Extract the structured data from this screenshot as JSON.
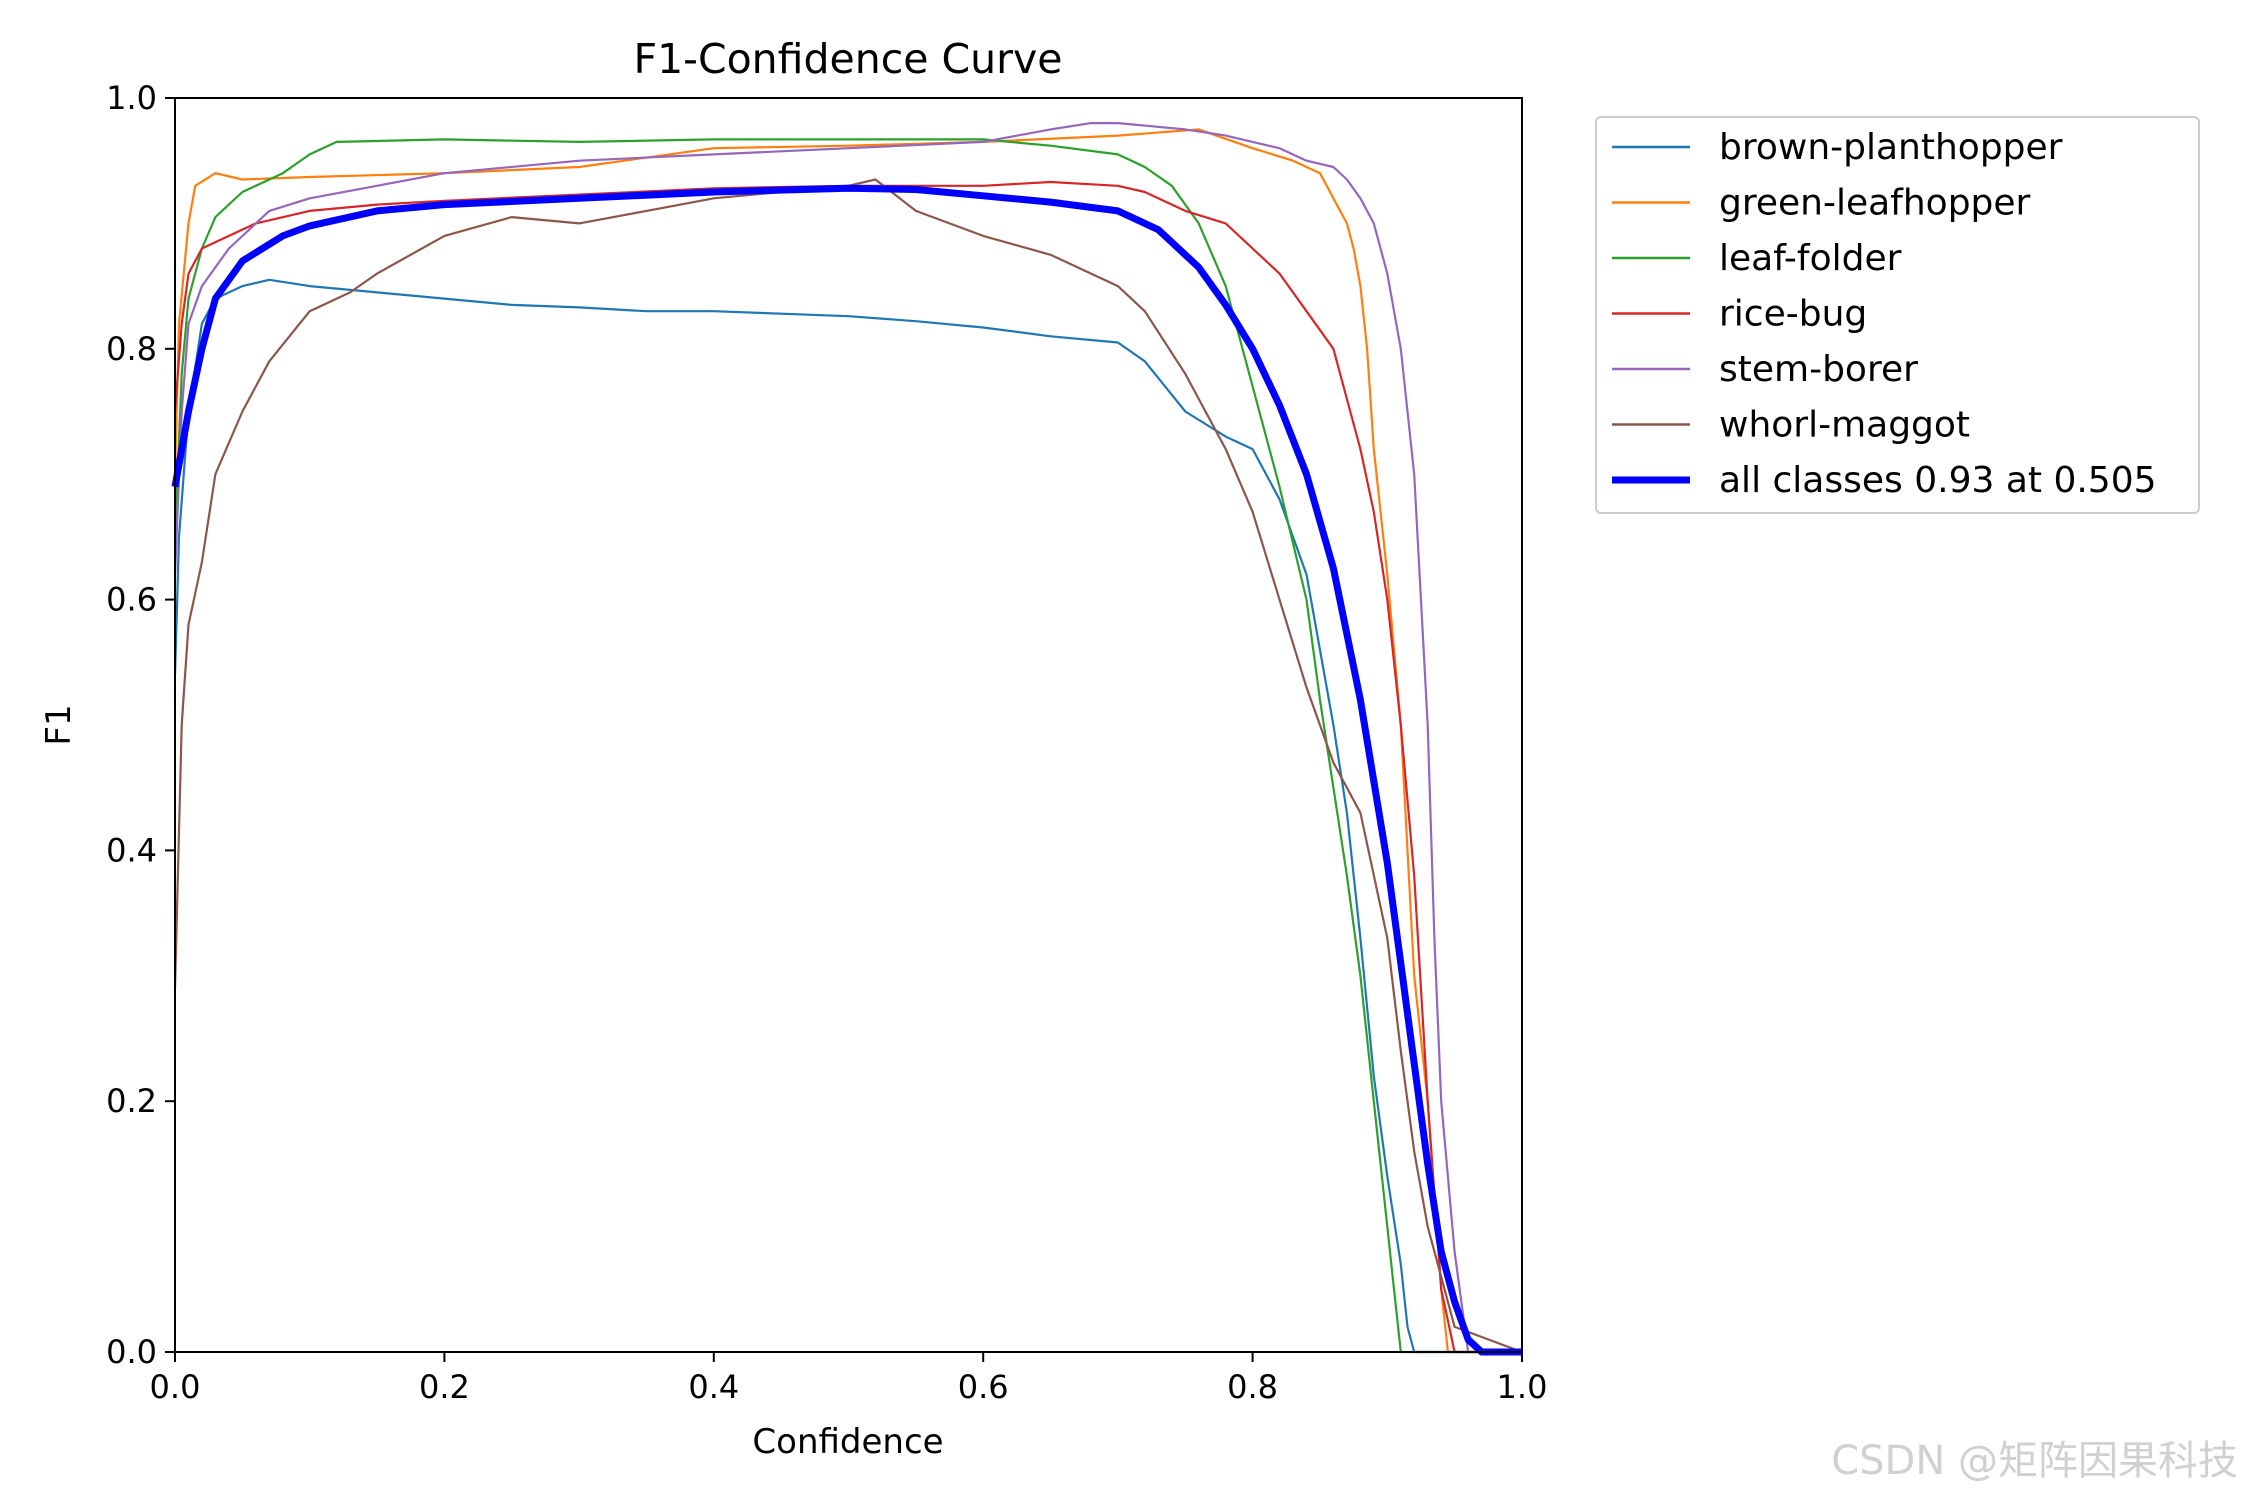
{
  "chart_data": {
    "type": "line",
    "title": "F1-Confidence Curve",
    "xlabel": "Confidence",
    "ylabel": "F1",
    "xlim": [
      0,
      1
    ],
    "ylim": [
      0,
      1
    ],
    "xticks": [
      "0.0",
      "0.2",
      "0.4",
      "0.6",
      "0.8",
      "1.0"
    ],
    "yticks": [
      "0.0",
      "0.2",
      "0.4",
      "0.6",
      "0.8",
      "1.0"
    ],
    "grid": false,
    "legend_position": "outside-top-right",
    "series": [
      {
        "name": "brown-planthopper",
        "color": "#1f77b4",
        "width": 2.2,
        "x": [
          0,
          0.003,
          0.01,
          0.02,
          0.03,
          0.05,
          0.07,
          0.1,
          0.15,
          0.2,
          0.25,
          0.3,
          0.35,
          0.4,
          0.45,
          0.5,
          0.55,
          0.6,
          0.65,
          0.7,
          0.72,
          0.75,
          0.78,
          0.8,
          0.82,
          0.84,
          0.86,
          0.87,
          0.88,
          0.89,
          0.9,
          0.91,
          0.915,
          0.92,
          1.0
        ],
        "y": [
          0.54,
          0.65,
          0.75,
          0.82,
          0.84,
          0.85,
          0.855,
          0.85,
          0.845,
          0.84,
          0.835,
          0.833,
          0.83,
          0.83,
          0.828,
          0.826,
          0.822,
          0.817,
          0.81,
          0.805,
          0.79,
          0.75,
          0.73,
          0.72,
          0.68,
          0.62,
          0.5,
          0.43,
          0.33,
          0.22,
          0.14,
          0.07,
          0.02,
          0.0,
          0.0
        ]
      },
      {
        "name": "green-leafhopper",
        "color": "#ff7f0e",
        "width": 2.2,
        "x": [
          0,
          0.003,
          0.01,
          0.015,
          0.03,
          0.05,
          0.1,
          0.2,
          0.3,
          0.4,
          0.5,
          0.6,
          0.7,
          0.76,
          0.8,
          0.83,
          0.85,
          0.86,
          0.87,
          0.875,
          0.88,
          0.885,
          0.89,
          0.9,
          0.91,
          0.92,
          0.93,
          0.94,
          0.945,
          1.0
        ],
        "y": [
          0.7,
          0.82,
          0.9,
          0.93,
          0.94,
          0.935,
          0.937,
          0.94,
          0.945,
          0.96,
          0.962,
          0.965,
          0.97,
          0.975,
          0.96,
          0.95,
          0.94,
          0.92,
          0.9,
          0.88,
          0.85,
          0.8,
          0.72,
          0.62,
          0.5,
          0.3,
          0.2,
          0.05,
          0.0,
          0.0
        ]
      },
      {
        "name": "leaf-folder",
        "color": "#2ca02c",
        "width": 2.2,
        "x": [
          0,
          0.005,
          0.01,
          0.02,
          0.03,
          0.05,
          0.08,
          0.1,
          0.12,
          0.2,
          0.3,
          0.4,
          0.5,
          0.6,
          0.65,
          0.7,
          0.72,
          0.74,
          0.76,
          0.78,
          0.8,
          0.82,
          0.84,
          0.85,
          0.86,
          0.87,
          0.88,
          0.89,
          0.9,
          0.905,
          0.91,
          1.0
        ],
        "y": [
          0.65,
          0.78,
          0.84,
          0.88,
          0.905,
          0.925,
          0.94,
          0.955,
          0.965,
          0.967,
          0.965,
          0.967,
          0.967,
          0.967,
          0.962,
          0.955,
          0.945,
          0.93,
          0.9,
          0.85,
          0.77,
          0.69,
          0.6,
          0.52,
          0.45,
          0.38,
          0.3,
          0.2,
          0.1,
          0.05,
          0.0,
          0.0
        ]
      },
      {
        "name": "rice-bug",
        "color": "#d62728",
        "width": 2.2,
        "x": [
          0,
          0.005,
          0.01,
          0.02,
          0.04,
          0.06,
          0.1,
          0.15,
          0.2,
          0.3,
          0.4,
          0.5,
          0.6,
          0.65,
          0.7,
          0.72,
          0.75,
          0.78,
          0.8,
          0.82,
          0.84,
          0.86,
          0.87,
          0.88,
          0.89,
          0.9,
          0.91,
          0.92,
          0.93,
          0.94,
          0.95,
          1.0
        ],
        "y": [
          0.75,
          0.82,
          0.86,
          0.88,
          0.89,
          0.9,
          0.91,
          0.915,
          0.918,
          0.923,
          0.928,
          0.93,
          0.93,
          0.933,
          0.93,
          0.925,
          0.91,
          0.9,
          0.88,
          0.86,
          0.83,
          0.8,
          0.76,
          0.72,
          0.67,
          0.6,
          0.5,
          0.38,
          0.2,
          0.05,
          0.0,
          0.0
        ]
      },
      {
        "name": "stem-borer",
        "color": "#9467bd",
        "width": 2.2,
        "x": [
          0,
          0.005,
          0.01,
          0.02,
          0.04,
          0.07,
          0.1,
          0.15,
          0.2,
          0.3,
          0.4,
          0.5,
          0.6,
          0.65,
          0.68,
          0.7,
          0.75,
          0.78,
          0.8,
          0.82,
          0.84,
          0.86,
          0.87,
          0.88,
          0.89,
          0.9,
          0.91,
          0.92,
          0.93,
          0.935,
          0.94,
          0.95,
          0.96,
          1.0
        ],
        "y": [
          0.62,
          0.75,
          0.82,
          0.85,
          0.88,
          0.91,
          0.92,
          0.93,
          0.94,
          0.95,
          0.955,
          0.96,
          0.965,
          0.975,
          0.98,
          0.98,
          0.975,
          0.97,
          0.965,
          0.96,
          0.95,
          0.945,
          0.935,
          0.92,
          0.9,
          0.86,
          0.8,
          0.7,
          0.5,
          0.33,
          0.2,
          0.08,
          0.0,
          0.0
        ]
      },
      {
        "name": "whorl-maggot",
        "color": "#8c564b",
        "width": 2.2,
        "x": [
          0,
          0.005,
          0.01,
          0.02,
          0.03,
          0.05,
          0.07,
          0.1,
          0.13,
          0.15,
          0.2,
          0.25,
          0.3,
          0.35,
          0.4,
          0.45,
          0.5,
          0.52,
          0.55,
          0.6,
          0.65,
          0.7,
          0.72,
          0.75,
          0.78,
          0.8,
          0.82,
          0.84,
          0.86,
          0.88,
          0.9,
          0.91,
          0.92,
          0.93,
          0.94,
          0.95,
          1.0
        ],
        "y": [
          0.29,
          0.5,
          0.58,
          0.63,
          0.7,
          0.75,
          0.79,
          0.83,
          0.845,
          0.86,
          0.89,
          0.905,
          0.9,
          0.91,
          0.92,
          0.925,
          0.93,
          0.935,
          0.91,
          0.89,
          0.875,
          0.85,
          0.83,
          0.78,
          0.72,
          0.67,
          0.6,
          0.53,
          0.47,
          0.43,
          0.33,
          0.24,
          0.16,
          0.1,
          0.06,
          0.02,
          0.0
        ]
      },
      {
        "name": "all classes 0.93 at 0.505",
        "color": "#0000ff",
        "width": 7,
        "x": [
          0,
          0.01,
          0.02,
          0.03,
          0.05,
          0.08,
          0.1,
          0.15,
          0.2,
          0.3,
          0.4,
          0.5,
          0.55,
          0.6,
          0.65,
          0.7,
          0.73,
          0.76,
          0.78,
          0.8,
          0.82,
          0.84,
          0.86,
          0.88,
          0.9,
          0.91,
          0.92,
          0.93,
          0.94,
          0.95,
          0.96,
          0.97,
          1.0
        ],
        "y": [
          0.69,
          0.75,
          0.8,
          0.84,
          0.87,
          0.89,
          0.898,
          0.91,
          0.915,
          0.92,
          0.925,
          0.928,
          0.927,
          0.922,
          0.917,
          0.91,
          0.895,
          0.865,
          0.835,
          0.8,
          0.755,
          0.7,
          0.625,
          0.52,
          0.39,
          0.31,
          0.23,
          0.15,
          0.08,
          0.04,
          0.01,
          0.0,
          0.0
        ]
      }
    ]
  },
  "watermark": "CSDN @矩阵因果科技"
}
